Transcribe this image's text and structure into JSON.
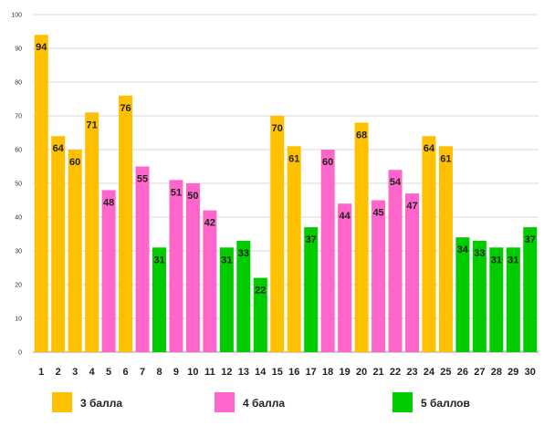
{
  "chart_data": {
    "type": "bar",
    "title": "",
    "xlabel": "",
    "ylabel": "",
    "ylim": [
      0,
      100
    ],
    "yticks": [
      0,
      10,
      20,
      30,
      40,
      50,
      60,
      70,
      80,
      90,
      100
    ],
    "grid": "horizontal",
    "legend_position": "bottom",
    "categories": [
      "1",
      "2",
      "3",
      "4",
      "5",
      "6",
      "7",
      "8",
      "9",
      "10",
      "11",
      "12",
      "13",
      "14",
      "15",
      "16",
      "17",
      "18",
      "19",
      "20",
      "21",
      "22",
      "23",
      "24",
      "25",
      "26",
      "27",
      "28",
      "29",
      "30"
    ],
    "values": [
      94,
      64,
      60,
      71,
      48,
      76,
      55,
      31,
      51,
      50,
      42,
      31,
      33,
      22,
      70,
      61,
      37,
      60,
      44,
      68,
      45,
      54,
      47,
      64,
      61,
      34,
      33,
      31,
      31,
      37
    ],
    "groups": [
      "g3",
      "g3",
      "g3",
      "g3",
      "g4",
      "g3",
      "g4",
      "g5",
      "g4",
      "g4",
      "g4",
      "g5",
      "g5",
      "g5",
      "g3",
      "g3",
      "g5",
      "g4",
      "g4",
      "g3",
      "g4",
      "g4",
      "g4",
      "g3",
      "g3",
      "g5",
      "g5",
      "g5",
      "g5",
      "g5"
    ],
    "legend": [
      {
        "key": "g3",
        "name": "3 балла",
        "color": "#FFC000"
      },
      {
        "key": "g4",
        "name": "4 балла",
        "color": "#FF66CC"
      },
      {
        "key": "g5",
        "name": "5 баллов",
        "color": "#00CC00"
      }
    ]
  }
}
